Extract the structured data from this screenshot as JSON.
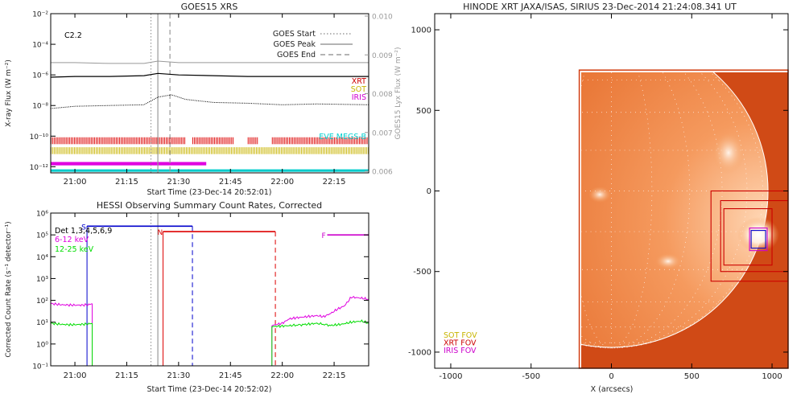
{
  "chart_data": [
    {
      "id": "goes",
      "type": "line",
      "title": "GOES15 XRS",
      "xlabel": "Start Time (23-Dec-14 20:52:01)",
      "ylabel": "X-ray Flux (W m⁻²)",
      "y2label": "GOES15 Lyx Flux (W m⁻²)",
      "xlim": [
        53,
        145
      ],
      "x_ticks": [
        {
          "v": 60,
          "label": "21:00"
        },
        {
          "v": 75,
          "label": "21:15"
        },
        {
          "v": 90,
          "label": "21:30"
        },
        {
          "v": 105,
          "label": "21:45"
        },
        {
          "v": 120,
          "label": "22:00"
        },
        {
          "v": 135,
          "label": "22:15"
        }
      ],
      "ylim_log10": [
        -12.4,
        -2
      ],
      "y_ticks": [
        {
          "e": -12,
          "label": "10⁻¹²"
        },
        {
          "e": -10,
          "label": "10⁻¹⁰"
        },
        {
          "e": -8,
          "label": "10⁻⁸"
        },
        {
          "e": -6,
          "label": "10⁻⁶"
        },
        {
          "e": -4,
          "label": "10⁻⁴"
        },
        {
          "e": -2,
          "label": "10⁻²"
        }
      ],
      "y2_ticks": [
        "0.010",
        "0.009",
        "0.008",
        "0.007",
        "0.006"
      ],
      "flare_class": "C2.2",
      "markers": {
        "start": 82,
        "peak": 84,
        "end": 87.5
      },
      "legend": [
        {
          "name": "GOES Start",
          "style": "dotted"
        },
        {
          "name": "GOES Peak",
          "style": "solid"
        },
        {
          "name": "GOES End",
          "style": "dashed"
        }
      ],
      "instrument_legend": [
        {
          "name": "XRT",
          "color": "#cc0000"
        },
        {
          "name": "SOT",
          "color": "#c8b400"
        },
        {
          "name": "IRIS",
          "color": "#d000d0"
        },
        {
          "name": "EVE MEGS-B",
          "color": "#00d0d0"
        }
      ],
      "series": [
        {
          "key": "lyman",
          "log10": [
            [
              53,
              -5.2
            ],
            [
              60,
              -5.2
            ],
            [
              70,
              -5.25
            ],
            [
              80,
              -5.25
            ],
            [
              84,
              -5.1
            ],
            [
              90,
              -5.2
            ],
            [
              100,
              -5.2
            ],
            [
              110,
              -5.2
            ],
            [
              120,
              -5.2
            ],
            [
              130,
              -5.2
            ],
            [
              145,
              -5.2
            ]
          ],
          "color": "#999999"
        },
        {
          "key": "long",
          "log10": [
            [
              53,
              -6.15
            ],
            [
              60,
              -6.1
            ],
            [
              70,
              -6.1
            ],
            [
              80,
              -6.05
            ],
            [
              84,
              -5.9
            ],
            [
              90,
              -6.0
            ],
            [
              100,
              -6.05
            ],
            [
              110,
              -6.1
            ],
            [
              120,
              -6.1
            ],
            [
              130,
              -6.1
            ],
            [
              145,
              -6.1
            ]
          ],
          "color": "#000000"
        },
        {
          "key": "short",
          "log10": [
            [
              53,
              -8.2
            ],
            [
              60,
              -8.05
            ],
            [
              70,
              -8.0
            ],
            [
              80,
              -7.95
            ],
            [
              84,
              -7.45
            ],
            [
              88,
              -7.3
            ],
            [
              92,
              -7.6
            ],
            [
              100,
              -7.8
            ],
            [
              110,
              -7.85
            ],
            [
              120,
              -7.95
            ],
            [
              130,
              -7.9
            ],
            [
              145,
              -7.95
            ]
          ],
          "color": "#000000"
        }
      ],
      "coverage": [
        {
          "name": "XRT",
          "color": "#dd0000",
          "log10": -10.3,
          "height": 0.45,
          "ranges": [
            [
              53,
              92
            ],
            [
              94,
              106
            ],
            [
              110,
              113
            ],
            [
              117,
              145
            ]
          ]
        },
        {
          "name": "SOT",
          "color": "#c8b400",
          "log10": -10.95,
          "height": 0.45,
          "ranges": [
            [
              53,
              145
            ]
          ]
        },
        {
          "name": "IRIS",
          "color": "#e000e0",
          "log10": -11.8,
          "height": 0.22,
          "ranges": [
            [
              53,
              98
            ]
          ]
        },
        {
          "name": "EVE MEGS-B",
          "color": "#00cccc",
          "log10": -12.25,
          "height": 0.16,
          "ranges": [
            [
              53,
              145
            ]
          ]
        }
      ]
    },
    {
      "id": "hessi",
      "type": "line",
      "title": "HESSI Observing Summary Count Rates, Corrected",
      "xlabel": "Start Time (23-Dec-14 20:52:02)",
      "ylabel": "Corrected Count Rate (s⁻¹ detector⁻¹)",
      "xlim": [
        53,
        145
      ],
      "x_ticks": [
        {
          "v": 60,
          "label": "21:00"
        },
        {
          "v": 75,
          "label": "21:15"
        },
        {
          "v": 90,
          "label": "21:30"
        },
        {
          "v": 105,
          "label": "21:45"
        },
        {
          "v": 120,
          "label": "22:00"
        },
        {
          "v": 135,
          "label": "22:15"
        }
      ],
      "ylim_log10": [
        -1,
        6
      ],
      "y_ticks": [
        {
          "e": -1,
          "label": "10⁻¹"
        },
        {
          "e": 0,
          "label": "10⁰"
        },
        {
          "e": 1,
          "label": "10¹"
        },
        {
          "e": 2,
          "label": "10²"
        },
        {
          "e": 3,
          "label": "10³"
        },
        {
          "e": 4,
          "label": "10⁴"
        },
        {
          "e": 5,
          "label": "10⁵"
        },
        {
          "e": 6,
          "label": "10⁶"
        }
      ],
      "detectors": "Det 1,3,4,5,6,9",
      "markers": {
        "start": 82,
        "peak": 84
      },
      "legend": [
        {
          "name": "6-12 keV",
          "color": "#e000e0"
        },
        {
          "name": "12-25 keV",
          "color": "#00dd00"
        }
      ],
      "series": [
        {
          "name": "6-12 keV",
          "color": "#e000e0",
          "segments": [
            [
              [
                53,
                1.85
              ],
              [
                56,
                1.8
              ],
              [
                59,
                1.78
              ],
              [
                62,
                1.78
              ],
              [
                64,
                1.8
              ],
              [
                65,
                1.85
              ]
            ],
            [
              [
                117,
                0.85
              ],
              [
                120,
                0.95
              ],
              [
                122,
                1.15
              ],
              [
                124,
                1.2
              ],
              [
                127,
                1.25
              ],
              [
                130,
                1.3
              ],
              [
                132,
                1.25
              ],
              [
                134,
                1.4
              ],
              [
                136,
                1.6
              ],
              [
                138,
                1.75
              ],
              [
                140,
                2.15
              ],
              [
                143,
                2.1
              ],
              [
                145,
                2.05
              ]
            ]
          ]
        },
        {
          "name": "12-25 keV",
          "color": "#00dd00",
          "segments": [
            [
              [
                53,
                0.95
              ],
              [
                56,
                0.9
              ],
              [
                59,
                0.88
              ],
              [
                62,
                0.9
              ],
              [
                64,
                0.92
              ],
              [
                65,
                0.95
              ]
            ],
            [
              [
                117,
                0.8
              ],
              [
                120,
                0.82
              ],
              [
                123,
                0.85
              ],
              [
                127,
                0.9
              ],
              [
                130,
                0.95
              ],
              [
                134,
                0.85
              ],
              [
                137,
                0.9
              ],
              [
                140,
                1.0
              ],
              [
                143,
                1.05
              ],
              [
                145,
                0.95
              ]
            ]
          ]
        }
      ],
      "attenuator_bars": [
        {
          "label": "S",
          "color": "#0000cc",
          "x_start": 63.5,
          "x_end": 94,
          "log10": 5.4,
          "end_style": "dashed",
          "drop_log10": 1.8
        },
        {
          "label": "N",
          "color": "#dd0000",
          "x_start": 85.5,
          "x_end": 118,
          "log10": 5.15,
          "end_style": "dashed",
          "drop_log10": 5.15
        },
        {
          "label": "F",
          "color": "#cc00cc",
          "x_start": 133,
          "x_end": 145,
          "log10": 5.0
        }
      ]
    },
    {
      "id": "hinode",
      "type": "image",
      "title": "HINODE XRT JAXA/ISAS, SIRIUS 23-Dec-2014 21:24:08.341 UT",
      "xlabel": "X (arcsecs)",
      "xlim": [
        -1100,
        1100
      ],
      "ylim": [
        -1100,
        1100
      ],
      "x_ticks": [
        -1000,
        -500,
        0,
        500,
        1000
      ],
      "y_ticks": [
        -1000,
        -500,
        0,
        500,
        1000
      ],
      "image_extent": {
        "x": [
          -200,
          1100
        ],
        "y": [
          -1100,
          750
        ]
      },
      "solar_radius": 975,
      "fov_legend": [
        {
          "name": "SOT FOV",
          "color": "#c8b400"
        },
        {
          "name": "XRT FOV",
          "color": "#cc0000"
        },
        {
          "name": "IRIS FOV",
          "color": "#cc00cc"
        }
      ],
      "fov_boxes": [
        {
          "name": "XRT",
          "color": "#cc0000",
          "x": [
            620,
            1100
          ],
          "y": [
            -560,
            0
          ]
        },
        {
          "name": "XRT",
          "color": "#cc0000",
          "x": [
            680,
            1100
          ],
          "y": [
            -500,
            -60
          ]
        },
        {
          "name": "XRT",
          "color": "#cc0000",
          "x": [
            700,
            1000
          ],
          "y": [
            -460,
            -110
          ]
        },
        {
          "name": "IRIS",
          "color": "#cc00cc",
          "x": [
            860,
            970
          ],
          "y": [
            -370,
            -230
          ]
        },
        {
          "name": "SOT",
          "color": "#0000cc",
          "x": [
            870,
            960
          ],
          "y": [
            -355,
            -245
          ]
        }
      ]
    }
  ]
}
